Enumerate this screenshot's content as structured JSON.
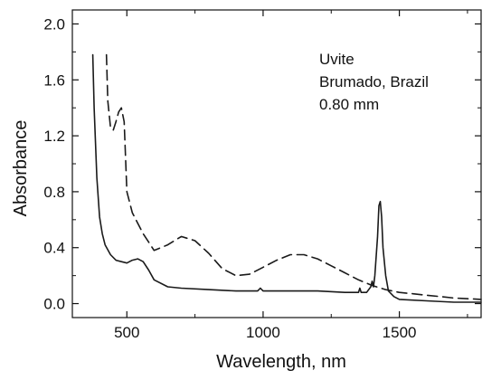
{
  "chart_data": {
    "type": "line",
    "title": "",
    "xlabel": "Wavelength, nm",
    "ylabel": "Absorbance",
    "xlim": [
      300,
      1800
    ],
    "ylim": [
      -0.1,
      2.1
    ],
    "x_ticks": [
      500,
      1000,
      1500
    ],
    "y_ticks": [
      0.0,
      0.4,
      0.8,
      1.2,
      1.6,
      2.0
    ],
    "x_tick_labels": [
      "500",
      "1000",
      "1500"
    ],
    "y_tick_labels": [
      "0.0",
      "0.4",
      "0.8",
      "1.2",
      "1.6",
      "2.0"
    ],
    "grid": false,
    "legend": "none",
    "annotation_lines": [
      "Uvite",
      "Brumado, Brazil",
      "0.80 mm"
    ],
    "series": [
      {
        "style": "solid",
        "color": "#1a1a1a",
        "x": [
          375,
          380,
          390,
          400,
          410,
          420,
          440,
          460,
          480,
          500,
          520,
          540,
          560,
          580,
          600,
          650,
          700,
          800,
          900,
          980,
          990,
          1000,
          1100,
          1200,
          1300,
          1350,
          1355,
          1360,
          1380,
          1395,
          1400,
          1405,
          1410,
          1420,
          1425,
          1430,
          1435,
          1440,
          1450,
          1460,
          1480,
          1500,
          1600,
          1700,
          1800
        ],
        "y": [
          1.78,
          1.4,
          0.9,
          0.62,
          0.5,
          0.42,
          0.35,
          0.31,
          0.3,
          0.29,
          0.31,
          0.32,
          0.3,
          0.24,
          0.17,
          0.12,
          0.11,
          0.1,
          0.09,
          0.09,
          0.11,
          0.09,
          0.09,
          0.09,
          0.08,
          0.08,
          0.11,
          0.08,
          0.08,
          0.12,
          0.16,
          0.12,
          0.2,
          0.48,
          0.7,
          0.73,
          0.62,
          0.4,
          0.2,
          0.09,
          0.05,
          0.03,
          0.02,
          0.01,
          0.01
        ]
      },
      {
        "style": "dashed",
        "color": "#1a1a1a",
        "x": [
          425,
          430,
          440,
          450,
          460,
          470,
          480,
          490,
          500,
          520,
          560,
          600,
          650,
          700,
          750,
          800,
          850,
          900,
          950,
          1000,
          1050,
          1100,
          1150,
          1200,
          1250,
          1300,
          1350,
          1400,
          1450,
          1500,
          1550,
          1600,
          1650,
          1700,
          1800
        ],
        "y": [
          1.78,
          1.45,
          1.26,
          1.24,
          1.3,
          1.37,
          1.4,
          1.3,
          0.8,
          0.65,
          0.5,
          0.38,
          0.42,
          0.48,
          0.45,
          0.36,
          0.25,
          0.2,
          0.21,
          0.26,
          0.31,
          0.35,
          0.35,
          0.32,
          0.27,
          0.22,
          0.17,
          0.13,
          0.1,
          0.08,
          0.07,
          0.06,
          0.05,
          0.04,
          0.03
        ]
      }
    ]
  }
}
